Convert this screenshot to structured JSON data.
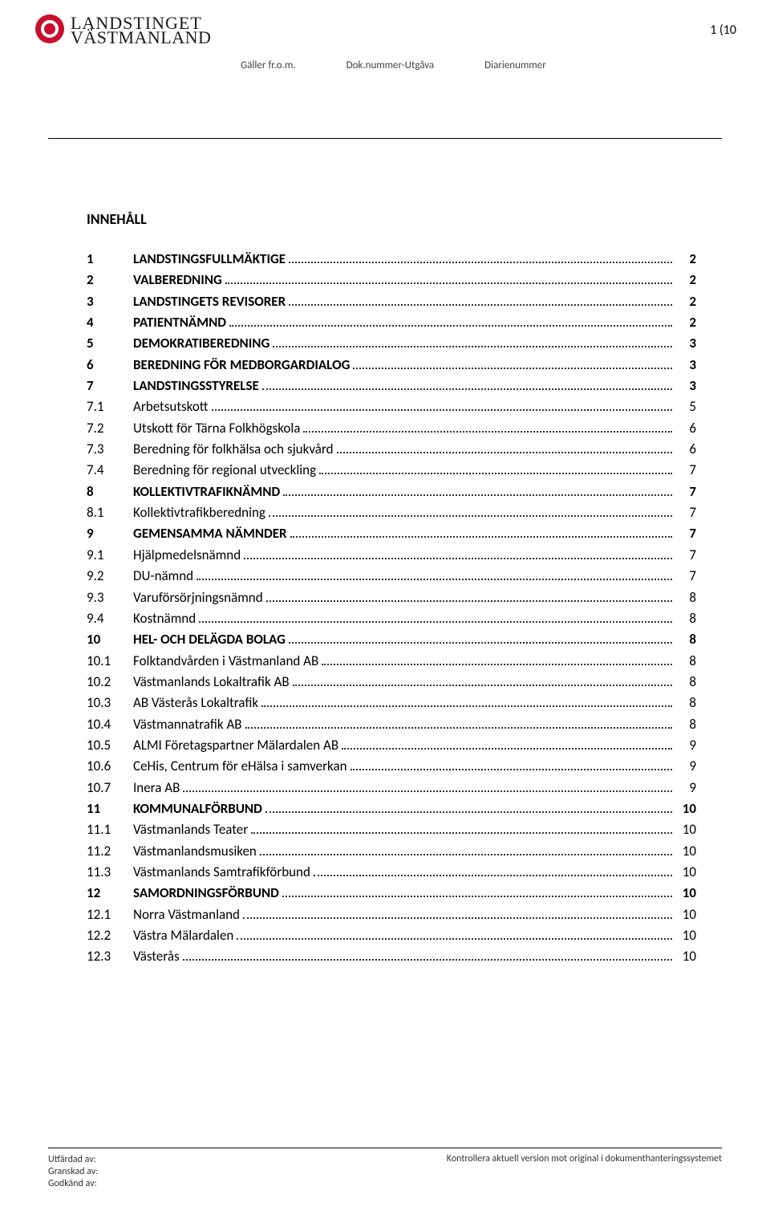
{
  "page_number_label": "1 (10",
  "logo": {
    "line1": "LANDSTINGET",
    "line2": "VÄSTMANLAND"
  },
  "meta": {
    "col1": "Gäller fr.o.m.",
    "col2": "Dok.nummer-Utgåva",
    "col3": "Diarienummer"
  },
  "heading": "INNEHÅLL",
  "toc": [
    {
      "num": "1",
      "title": "LANDSTINGSFULLMÄKTIGE",
      "page": "2",
      "bold": true
    },
    {
      "num": "2",
      "title": "VALBEREDNING",
      "page": "2",
      "bold": true
    },
    {
      "num": "3",
      "title": "LANDSTINGETS REVISORER",
      "page": "2",
      "bold": true
    },
    {
      "num": "4",
      "title": "PATIENTNÄMND",
      "page": "2",
      "bold": true
    },
    {
      "num": "5",
      "title": "DEMOKRATIBEREDNING",
      "page": "3",
      "bold": true
    },
    {
      "num": "6",
      "title": "BEREDNING FÖR MEDBORGARDIALOG",
      "page": "3",
      "bold": true
    },
    {
      "num": "7",
      "title": "LANDSTINGSSTYRELSE",
      "page": "3",
      "bold": true
    },
    {
      "num": "7.1",
      "title": "Arbetsutskott",
      "page": "5",
      "bold": false
    },
    {
      "num": "7.2",
      "title": "Utskott för Tärna Folkhögskola",
      "page": "6",
      "bold": false
    },
    {
      "num": "7.3",
      "title": "Beredning för folkhälsa och sjukvård",
      "page": "6",
      "bold": false
    },
    {
      "num": "7.4",
      "title": "Beredning för regional utveckling",
      "page": "7",
      "bold": false
    },
    {
      "num": "8",
      "title": "KOLLEKTIVTRAFIKNÄMND",
      "page": "7",
      "bold": true
    },
    {
      "num": "8.1",
      "title": "Kollektivtrafikberedning",
      "page": "7",
      "bold": false
    },
    {
      "num": "9",
      "title": "GEMENSAMMA NÄMNDER",
      "page": "7",
      "bold": true
    },
    {
      "num": "9.1",
      "title": "Hjälpmedelsnämnd",
      "page": "7",
      "bold": false
    },
    {
      "num": "9.2",
      "title": "DU-nämnd",
      "page": "7",
      "bold": false
    },
    {
      "num": "9.3",
      "title": "Varuförsörjningsnämnd",
      "page": "8",
      "bold": false
    },
    {
      "num": "9.4",
      "title": "Kostnämnd",
      "page": "8",
      "bold": false
    },
    {
      "num": "10",
      "title": "HEL- OCH DELÄGDA BOLAG",
      "page": "8",
      "bold": true
    },
    {
      "num": "10.1",
      "title": "Folktandvården i Västmanland AB",
      "page": "8",
      "bold": false
    },
    {
      "num": "10.2",
      "title": "Västmanlands Lokaltrafik AB",
      "page": "8",
      "bold": false
    },
    {
      "num": "10.3",
      "title": "AB Västerås Lokaltrafik",
      "page": "8",
      "bold": false
    },
    {
      "num": "10.4",
      "title": "Västmannatrafik AB",
      "page": "8",
      "bold": false
    },
    {
      "num": "10.5",
      "title": "ALMI Företagspartner Mälardalen AB",
      "page": "9",
      "bold": false
    },
    {
      "num": "10.6",
      "title": "CeHis, Centrum för eHälsa i samverkan",
      "page": "9",
      "bold": false
    },
    {
      "num": "10.7",
      "title": "Inera AB",
      "page": "9",
      "bold": false
    },
    {
      "num": "11",
      "title": "KOMMUNALFÖRBUND",
      "page": "10",
      "bold": true
    },
    {
      "num": "11.1",
      "title": "Västmanlands Teater",
      "page": "10",
      "bold": false
    },
    {
      "num": "11.2",
      "title": "Västmanlandsmusiken",
      "page": "10",
      "bold": false
    },
    {
      "num": "11.3",
      "title": "Västmanlands Samtrafikförbund",
      "page": "10",
      "bold": false
    },
    {
      "num": "12",
      "title": "SAMORDNINGSFÖRBUND",
      "page": "10",
      "bold": true
    },
    {
      "num": "12.1",
      "title": "Norra Västmanland",
      "page": "10",
      "bold": false
    },
    {
      "num": "12.2",
      "title": "Västra Mälardalen",
      "page": "10",
      "bold": false
    },
    {
      "num": "12.3",
      "title": "Västerås",
      "page": "10",
      "bold": false
    }
  ],
  "footer": {
    "left1": "Utfärdad av:",
    "left2": "Granskad av:",
    "left3": "Godkänd av:",
    "right": "Kontrollera aktuell version mot original i dokumenthanteringssystemet"
  }
}
